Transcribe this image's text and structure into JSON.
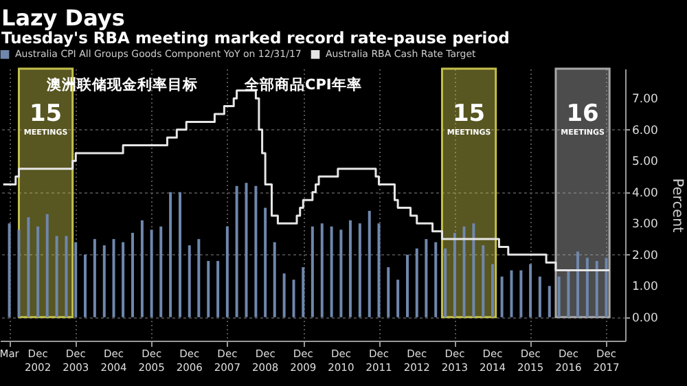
{
  "chart_data": {
    "type": "bar",
    "title": "Lazy Days",
    "subtitle": "Tuesday's RBA meeting marked record rate-pause period",
    "ylabel": "Percent",
    "annotations": [
      "澳洲联储现金利率目标",
      "全部商品CPI年率"
    ],
    "xlim": [
      "2001-12",
      "2018-06"
    ],
    "xticks": [
      {
        "value": "2002-03",
        "label": "Mar"
      },
      {
        "value": "2002-12",
        "label": "Dec 2002"
      },
      {
        "value": "2003-12",
        "label": "Dec 2003"
      },
      {
        "value": "2004-12",
        "label": "Dec 2004"
      },
      {
        "value": "2005-12",
        "label": "Dec 2005"
      },
      {
        "value": "2006-12",
        "label": "Dec 2006"
      },
      {
        "value": "2007-12",
        "label": "Dec 2007"
      },
      {
        "value": "2008-12",
        "label": "Dec 2008"
      },
      {
        "value": "2009-12",
        "label": "Dec 2009"
      },
      {
        "value": "2010-12",
        "label": "Dec 2010"
      },
      {
        "value": "2011-12",
        "label": "Dec 2011"
      },
      {
        "value": "2012-12",
        "label": "Dec 2012"
      },
      {
        "value": "2013-12",
        "label": "Dec 2013"
      },
      {
        "value": "2014-12",
        "label": "Dec 2014"
      },
      {
        "value": "2015-12",
        "label": "Dec 2015"
      },
      {
        "value": "2016-12",
        "label": "Dec 2016"
      },
      {
        "value": "2017-12",
        "label": "Dec 2017"
      }
    ],
    "ylim": [
      -0.75,
      7.95
    ],
    "yticks": [
      {
        "value": 0,
        "label": "0.00"
      },
      {
        "value": 1,
        "label": "1.00"
      },
      {
        "value": 2,
        "label": "2.00"
      },
      {
        "value": 3,
        "label": "3.00"
      },
      {
        "value": 4,
        "label": "4.00"
      },
      {
        "value": 5,
        "label": "5.00"
      },
      {
        "value": 6,
        "label": "6.00"
      },
      {
        "value": 7,
        "label": "7.00"
      }
    ],
    "grid": true,
    "legend": "top left",
    "bands": [
      {
        "axis": "x",
        "from": "2002-06",
        "to": "2003-11",
        "label": "15 MEETINGS",
        "color": "#c4bf4a"
      },
      {
        "axis": "x",
        "from": "2013-08",
        "to": "2015-01",
        "label": "15 MEETINGS",
        "color": "#c4bf4a"
      },
      {
        "axis": "x",
        "from": "2016-08",
        "to": "2018-01",
        "label": "16 MEETINGS",
        "color": "#a8a8a8"
      }
    ],
    "series": [
      {
        "name": "Australia CPI All Groups Goods Component YoY on 12/31/17",
        "type": "bar",
        "color": "#6f87ad",
        "x": [
          "2002-03",
          "2002-06",
          "2002-09",
          "2002-12",
          "2003-03",
          "2003-06",
          "2003-09",
          "2003-12",
          "2004-03",
          "2004-06",
          "2004-09",
          "2004-12",
          "2005-03",
          "2005-06",
          "2005-09",
          "2005-12",
          "2006-03",
          "2006-06",
          "2006-09",
          "2006-12",
          "2007-03",
          "2007-06",
          "2007-09",
          "2007-12",
          "2008-03",
          "2008-06",
          "2008-09",
          "2008-12",
          "2009-03",
          "2009-06",
          "2009-09",
          "2009-12",
          "2010-03",
          "2010-06",
          "2010-09",
          "2010-12",
          "2011-03",
          "2011-06",
          "2011-09",
          "2011-12",
          "2012-03",
          "2012-06",
          "2012-09",
          "2012-12",
          "2013-03",
          "2013-06",
          "2013-09",
          "2013-12",
          "2014-03",
          "2014-06",
          "2014-09",
          "2014-12",
          "2015-03",
          "2015-06",
          "2015-09",
          "2015-12",
          "2016-03",
          "2016-06",
          "2016-09",
          "2016-12",
          "2017-03",
          "2017-06",
          "2017-09",
          "2017-12"
        ],
        "values": [
          3.0,
          2.8,
          3.2,
          2.9,
          3.3,
          2.6,
          2.6,
          2.4,
          2.0,
          2.5,
          2.3,
          2.5,
          2.4,
          2.7,
          3.1,
          2.8,
          2.9,
          4.0,
          4.0,
          2.3,
          2.5,
          1.8,
          1.8,
          2.9,
          4.2,
          4.3,
          4.2,
          3.5,
          2.4,
          1.4,
          1.2,
          1.6,
          2.9,
          3.0,
          2.9,
          2.8,
          3.1,
          3.0,
          3.4,
          3.0,
          1.6,
          1.2,
          2.0,
          2.2,
          2.5,
          2.4,
          2.2,
          2.7,
          2.9,
          3.0,
          2.3,
          1.7,
          1.3,
          1.5,
          1.5,
          1.7,
          1.3,
          1.0,
          1.3,
          1.5,
          2.1,
          1.9,
          1.8,
          1.9
        ]
      },
      {
        "name": "Australia RBA Cash Rate Target",
        "type": "step",
        "color": "#e6e6e6",
        "x": [
          "2002-01",
          "2002-05",
          "2002-06",
          "2003-11",
          "2003-12",
          "2005-03",
          "2006-05",
          "2006-08",
          "2006-11",
          "2007-08",
          "2007-11",
          "2008-02",
          "2008-03",
          "2008-09",
          "2008-10",
          "2008-11",
          "2008-12",
          "2009-02",
          "2009-04",
          "2009-10",
          "2009-11",
          "2009-12",
          "2010-03",
          "2010-04",
          "2010-05",
          "2010-11",
          "2011-11",
          "2011-12",
          "2012-05",
          "2012-06",
          "2012-10",
          "2012-12",
          "2013-05",
          "2013-08",
          "2015-02",
          "2015-05",
          "2016-05",
          "2016-08",
          "2018-01"
        ],
        "values": [
          4.25,
          4.5,
          4.75,
          5.0,
          5.25,
          5.5,
          5.75,
          6.0,
          6.25,
          6.5,
          6.75,
          7.0,
          7.25,
          7.0,
          6.0,
          5.25,
          4.25,
          3.25,
          3.0,
          3.25,
          3.5,
          3.75,
          4.0,
          4.25,
          4.5,
          4.75,
          4.5,
          4.25,
          3.75,
          3.5,
          3.25,
          3.0,
          2.75,
          2.5,
          2.25,
          2.0,
          1.75,
          1.5,
          1.5
        ]
      }
    ]
  }
}
